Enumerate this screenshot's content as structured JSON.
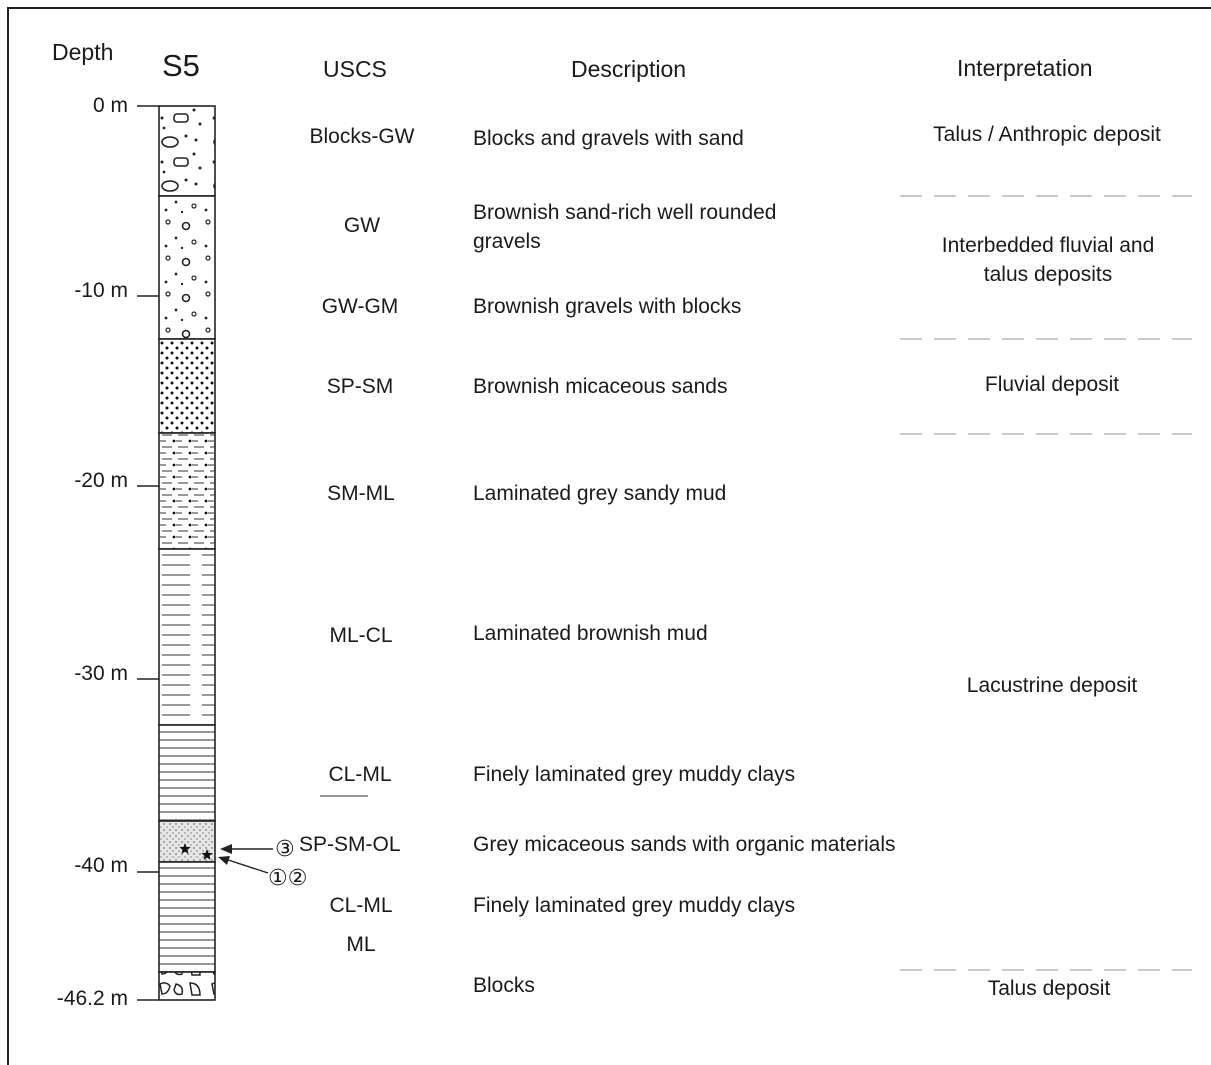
{
  "header": {
    "depth": "Depth",
    "borehole": "S5",
    "uscs": "USCS",
    "description": "Description",
    "interpretation": "Interpretation"
  },
  "depth_ticks": [
    "0 m",
    "-10 m",
    "-20 m",
    "-30 m",
    "-40 m",
    "-46.2 m"
  ],
  "layers": [
    {
      "uscs": "Blocks-GW",
      "description": "Blocks and gravels with sand"
    },
    {
      "uscs": "GW",
      "description": "Brownish sand-rich well rounded gravels"
    },
    {
      "uscs": "GW-GM",
      "description": "Brownish gravels with blocks"
    },
    {
      "uscs": "SP-SM",
      "description": "Brownish micaceous sands"
    },
    {
      "uscs": "SM-ML",
      "description": "Laminated grey sandy mud"
    },
    {
      "uscs": "ML-CL",
      "description": "Laminated brownish mud"
    },
    {
      "uscs": "CL-ML",
      "description": "Finely laminated grey muddy clays"
    },
    {
      "uscs": "SP-SM-OL",
      "description": "Grey micaceous sands with organic materials"
    },
    {
      "uscs": "CL-ML",
      "description": "Finely laminated grey muddy clays"
    },
    {
      "uscs": "ML",
      "description": ""
    },
    {
      "uscs": "",
      "description": "Blocks"
    }
  ],
  "interpretations": [
    "Talus / Anthropic deposit",
    "Interbedded fluvial and talus deposits",
    "Fluvial deposit",
    "Lacustrine deposit",
    "Talus deposit"
  ],
  "samples": {
    "upper": "③",
    "lower": "①②"
  }
}
